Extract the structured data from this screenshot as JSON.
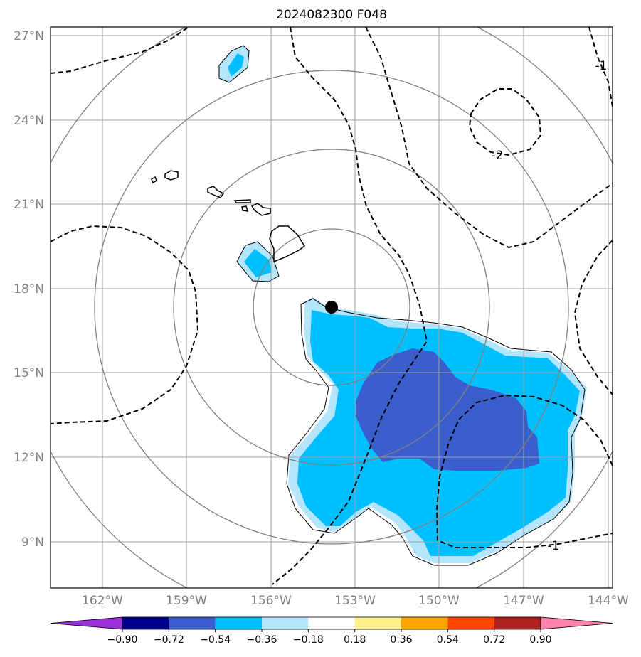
{
  "map": {
    "title": "2024082300 F048",
    "lat_ticks": [
      "27°N",
      "24°N",
      "21°N",
      "18°N",
      "15°N",
      "12°N",
      "9°N"
    ],
    "lon_ticks": [
      "162°W",
      "159°W",
      "156°W",
      "153°W",
      "150°W",
      "147°W",
      "144°W"
    ],
    "contour_labels": [
      "-1",
      "-2",
      "-1"
    ],
    "center_marker": {
      "lat": 17.3,
      "lon": -153.9
    },
    "range_rings_count": 4
  },
  "colorbar": {
    "ticks": [
      "−0.90",
      "−0.72",
      "−0.54",
      "−0.36",
      "−0.18",
      "0.18",
      "0.36",
      "0.54",
      "0.72",
      "0.90"
    ],
    "colors": [
      "#9b30d9",
      "#00008b",
      "#3a5fcd",
      "#00bfff",
      "#b3e5fc",
      "#ffffff",
      "#fff08a",
      "#ffa500",
      "#ff4500",
      "#b22222",
      "#ff82ab"
    ]
  },
  "shading_colors": {
    "light": "#b3e5fc",
    "mid": "#00bfff",
    "dark": "#3a5fcd"
  }
}
